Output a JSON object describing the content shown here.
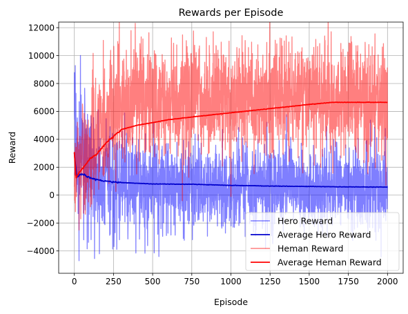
{
  "chart_data": {
    "type": "line",
    "title": "Rewards per Episode",
    "xlabel": "Episode",
    "ylabel": "Reward",
    "xlim": [
      -100,
      2100
    ],
    "ylim": [
      -5600,
      12400
    ],
    "xticks": [
      0,
      250,
      500,
      750,
      1000,
      1250,
      1500,
      1750,
      2000
    ],
    "yticks": [
      -4000,
      -2000,
      0,
      2000,
      4000,
      6000,
      8000,
      10000,
      12000
    ],
    "grid": true,
    "legend_position": "lower-right",
    "series": [
      {
        "name": "Hero Reward",
        "color": "#0000ff",
        "opacity": 0.5,
        "style": "noisy",
        "points": [
          [
            0,
            7000
          ],
          [
            20,
            1500
          ],
          [
            40,
            4000
          ],
          [
            80,
            900
          ],
          [
            200,
            900
          ],
          [
            400,
            800
          ],
          [
            600,
            700
          ],
          [
            800,
            700
          ],
          [
            1000,
            650
          ],
          [
            1250,
            600
          ],
          [
            1500,
            600
          ],
          [
            1750,
            550
          ],
          [
            2000,
            550
          ]
        ],
        "spread_points": [
          [
            0,
            2500
          ],
          [
            100,
            2000
          ],
          [
            500,
            1600
          ],
          [
            1000,
            1400
          ],
          [
            1500,
            1400
          ],
          [
            2000,
            1600
          ]
        ],
        "dips": [
          [
            30,
            -4700
          ],
          [
            60,
            -3200
          ],
          [
            160,
            -4200
          ],
          [
            540,
            -4400
          ],
          [
            680,
            -1000
          ],
          [
            1600,
            -1600
          ]
        ]
      },
      {
        "name": "Average Hero Reward",
        "color": "#0000cd",
        "style": "line",
        "points": [
          [
            0,
            3000
          ],
          [
            15,
            1300
          ],
          [
            40,
            1500
          ],
          [
            60,
            1450
          ],
          [
            100,
            1250
          ],
          [
            150,
            1100
          ],
          [
            200,
            1000
          ],
          [
            300,
            900
          ],
          [
            400,
            850
          ],
          [
            500,
            800
          ],
          [
            750,
            780
          ],
          [
            1000,
            700
          ],
          [
            1250,
            650
          ],
          [
            1500,
            620
          ],
          [
            1750,
            590
          ],
          [
            2000,
            580
          ]
        ]
      },
      {
        "name": "Heman Reward",
        "color": "#ff0000",
        "opacity": 0.5,
        "style": "noisy",
        "points": [
          [
            0,
            2500
          ],
          [
            30,
            2000
          ],
          [
            80,
            3200
          ],
          [
            150,
            4500
          ],
          [
            250,
            6000
          ],
          [
            350,
            6500
          ],
          [
            500,
            6700
          ],
          [
            750,
            6800
          ],
          [
            1000,
            7000
          ],
          [
            1250,
            7000
          ],
          [
            1500,
            7100
          ],
          [
            1750,
            6900
          ],
          [
            2000,
            6800
          ]
        ],
        "spread_points": [
          [
            0,
            1800
          ],
          [
            100,
            2200
          ],
          [
            300,
            2400
          ],
          [
            600,
            2000
          ],
          [
            1000,
            1900
          ],
          [
            1500,
            2000
          ],
          [
            2000,
            2000
          ]
        ],
        "dips": [
          [
            30,
            -2500
          ],
          [
            60,
            -1300
          ],
          [
            690,
            -400
          ],
          [
            1000,
            -100
          ],
          [
            1990,
            700
          ]
        ]
      },
      {
        "name": "Average Heman Reward",
        "color": "#ff0000",
        "style": "line",
        "points": [
          [
            0,
            3200
          ],
          [
            10,
            1200
          ],
          [
            30,
            1600
          ],
          [
            60,
            2000
          ],
          [
            100,
            2600
          ],
          [
            150,
            3000
          ],
          [
            200,
            3700
          ],
          [
            250,
            4200
          ],
          [
            300,
            4700
          ],
          [
            400,
            5000
          ],
          [
            500,
            5200
          ],
          [
            600,
            5400
          ],
          [
            750,
            5600
          ],
          [
            1000,
            5900
          ],
          [
            1250,
            6200
          ],
          [
            1500,
            6500
          ],
          [
            1650,
            6650
          ],
          [
            2000,
            6650
          ]
        ]
      }
    ]
  }
}
